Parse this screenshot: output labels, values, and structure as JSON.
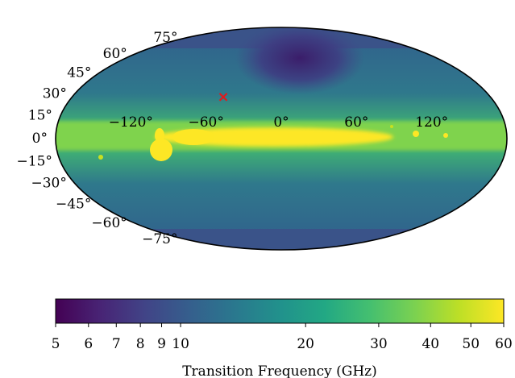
{
  "chart_data": {
    "type": "heatmap",
    "projection": "mollweide",
    "title": "",
    "lon_ticks": [
      "−120°",
      "−60°",
      "0°",
      "60°",
      "120°"
    ],
    "lon_tick_values": [
      -120,
      -60,
      0,
      60,
      120
    ],
    "lat_ticks": [
      "75°",
      "60°",
      "45°",
      "30°",
      "15°",
      "0°",
      "−15°",
      "−30°",
      "−45°",
      "−60°",
      "−75°"
    ],
    "lat_tick_values": [
      75,
      60,
      45,
      30,
      15,
      0,
      -15,
      -30,
      -45,
      -60,
      -75
    ],
    "marker": {
      "symbol": "×",
      "lon": -50,
      "lat": 28,
      "color": "#e31a1c"
    },
    "colormap": "viridis",
    "colorbar": {
      "label": "Transition Frequency (GHz)",
      "scale": "log",
      "range": [
        5,
        60
      ],
      "ticks": [
        "5",
        "6",
        "7",
        "8",
        "9",
        "10",
        "20",
        "30",
        "40",
        "50",
        "60"
      ],
      "tick_values": [
        5,
        6,
        7,
        8,
        9,
        10,
        20,
        30,
        40,
        50,
        60
      ]
    },
    "grid": false,
    "approx_field": {
      "galactic_plane_value": 60,
      "high_latitude_value": 12,
      "north_polar_spur_value": 6
    }
  }
}
